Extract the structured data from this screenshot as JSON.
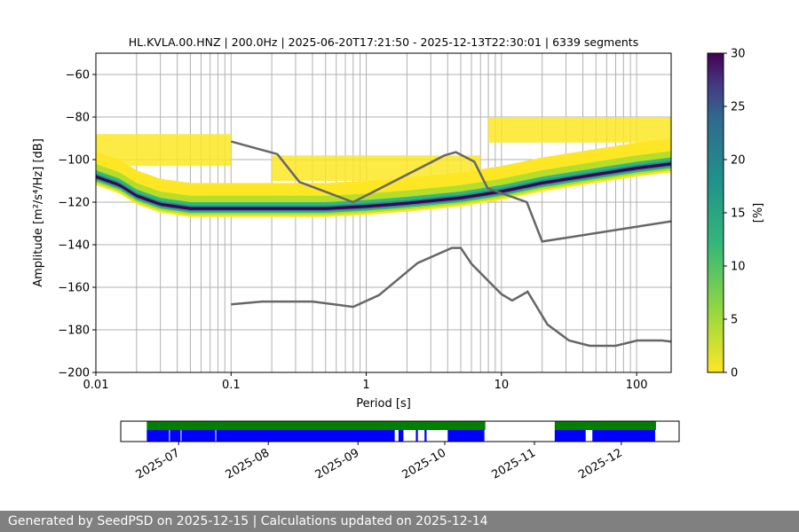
{
  "chart_data": [
    {
      "type": "heatmap",
      "title": "HL.KVLA.00.HNZ | 200.0Hz | 2025-06-20T17:21:50 - 2025-12-13T22:30:01 | 6339 segments",
      "xlabel": "Period [s]",
      "ylabel": "Amplitude [m²/s⁴/Hz] [dB]",
      "x_scale": "log",
      "xlim": [
        0.01,
        180
      ],
      "ylim": [
        -200,
        -50
      ],
      "x_ticks": [
        0.01,
        0.1,
        1,
        10,
        100
      ],
      "x_tick_labels": [
        "0.01",
        "0.1",
        "1",
        "10",
        "100"
      ],
      "y_ticks": [
        -200,
        -180,
        -160,
        -140,
        -120,
        -100,
        -80,
        -60
      ],
      "y_tick_labels": [
        "−200",
        "−180",
        "−160",
        "−140",
        "−120",
        "−100",
        "−80",
        "−60"
      ],
      "grid": true,
      "colorbar": {
        "label": "[%]",
        "min": 0,
        "max": 30,
        "ticks": [
          0,
          5,
          10,
          15,
          20,
          25,
          30
        ],
        "colormap": "viridis_r"
      },
      "mode_curve": {
        "period": [
          0.01,
          0.015,
          0.02,
          0.03,
          0.05,
          0.1,
          0.2,
          0.5,
          1,
          2,
          5,
          10,
          20,
          50,
          100,
          180
        ],
        "amplitude": [
          -108,
          -112,
          -117,
          -121,
          -123,
          -123,
          -123,
          -123,
          -122,
          -120.5,
          -118,
          -115,
          -111,
          -107,
          -104,
          -102
        ]
      },
      "model_curves": [
        {
          "name": "",
          "period": [
            0.1,
            0.22,
            0.32,
            0.8,
            3.8,
            4.6,
            6.3,
            7.9,
            15.4,
            20,
            180
          ],
          "amplitude": [
            -91.5,
            -97.4,
            -110.5,
            -120,
            -98,
            -96.5,
            -101,
            -113.5,
            -120,
            -138.5,
            -129
          ]
        },
        {
          "name": "",
          "period": [
            0.1,
            0.17,
            0.4,
            0.8,
            1.24,
            2.4,
            4.3,
            5,
            6,
            10,
            12,
            15.6,
            21.9,
            31.6,
            45,
            70,
            101,
            154,
            180
          ],
          "amplitude": [
            -168,
            -166.7,
            -166.7,
            -169.2,
            -163.7,
            -148.6,
            -141.5,
            -141.5,
            -149,
            -163.2,
            -166.2,
            -162.1,
            -177.5,
            -185,
            -187.5,
            -187.5,
            -185,
            -185,
            -185.5
          ]
        }
      ],
      "highlights": [
        {
          "period_range": [
            0.01,
            0.1
          ],
          "amp_range": [
            -103,
            -88
          ]
        },
        {
          "period_range": [
            0.2,
            7
          ],
          "amp_range": [
            -110,
            -98
          ]
        },
        {
          "period_range": [
            8,
            180
          ],
          "amp_range": [
            -92,
            -80
          ]
        }
      ]
    },
    {
      "type": "timeline",
      "x_tick_labels": [
        "2025-07",
        "2025-08",
        "2025-09",
        "2025-10",
        "2025-11",
        "2025-12"
      ],
      "x_tick_dates": [
        "2025-07-01",
        "2025-08-01",
        "2025-09-01",
        "2025-10-01",
        "2025-11-01",
        "2025-12-01"
      ],
      "xlim": [
        "2025-06-11",
        "2025-12-21"
      ],
      "green_coverage": [
        [
          "2025-06-20",
          "2025-10-15"
        ],
        [
          "2025-11-08",
          "2025-12-13"
        ]
      ],
      "blue_coverage": [
        [
          "2025-06-20",
          "2025-06-28"
        ],
        [
          "2025-06-28",
          "2025-07-02"
        ],
        [
          "2025-07-02",
          "2025-07-14"
        ],
        [
          "2025-07-14",
          "2025-09-14"
        ],
        [
          "2025-09-15",
          "2025-09-17"
        ],
        [
          "2025-09-21",
          "2025-09-22"
        ],
        [
          "2025-09-24",
          "2025-09-25"
        ],
        [
          "2025-10-02",
          "2025-10-15"
        ],
        [
          "2025-11-08",
          "2025-11-19"
        ],
        [
          "2025-11-21",
          "2025-12-13"
        ]
      ],
      "colors": {
        "green": "#008000",
        "blue": "#0000ff"
      }
    }
  ],
  "footer": {
    "text": "Generated by SeedPSD on 2025-12-15 | Calculations updated on 2025-12-14"
  }
}
